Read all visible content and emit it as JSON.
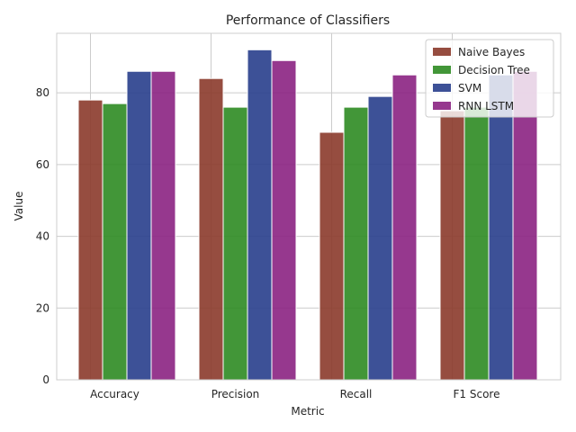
{
  "chart_data": {
    "type": "bar",
    "title": "Performance of Classifiers",
    "xlabel": "Metric",
    "ylabel": "Value",
    "categories": [
      "Accuracy",
      "Precision",
      "Recall",
      "F1 Score"
    ],
    "series": [
      {
        "name": "Naive Bayes",
        "color": "#8b3a2b",
        "values": [
          78,
          84,
          69,
          75
        ]
      },
      {
        "name": "Decision Tree",
        "color": "#2e8b22",
        "values": [
          77,
          76,
          76,
          76
        ]
      },
      {
        "name": "SVM",
        "color": "#283e8c",
        "values": [
          86,
          92,
          79,
          85
        ]
      },
      {
        "name": "RNN LSTM",
        "color": "#8b2282",
        "values": [
          86,
          89,
          85,
          86
        ]
      }
    ],
    "ylim": [
      0,
      96.6
    ],
    "yticks": [
      0,
      20,
      40,
      60,
      80
    ],
    "grid": true,
    "legend_position": "top-right"
  }
}
